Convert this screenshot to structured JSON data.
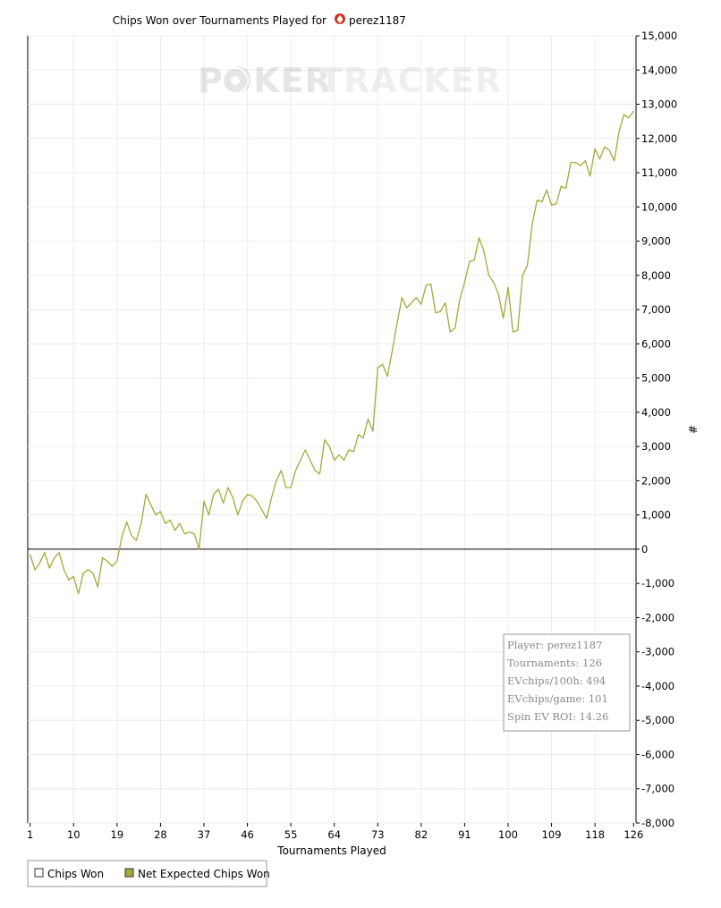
{
  "chart_data": {
    "type": "line",
    "title_prefix": "Chips Won over Tournaments Played for",
    "player_name": "perez1187",
    "title_icon": "spade-icon",
    "xlabel": "Tournaments Played",
    "ylabel": "#",
    "xlim": [
      0.5,
      126.5
    ],
    "ylim": [
      -8000,
      15000
    ],
    "x_ticks": [
      1,
      10,
      19,
      28,
      37,
      46,
      55,
      64,
      73,
      82,
      91,
      100,
      109,
      118,
      126
    ],
    "y_ticks": [
      -8000,
      -7000,
      -6000,
      -5000,
      -4000,
      -3000,
      -2000,
      -1000,
      0,
      1000,
      2000,
      3000,
      4000,
      5000,
      6000,
      7000,
      8000,
      9000,
      10000,
      11000,
      12000,
      13000,
      14000,
      15000
    ],
    "y_tick_labels": [
      "-8,000",
      "-7,000",
      "-6,000",
      "-5,000",
      "-4,000",
      "-3,000",
      "-2,000",
      "-1,000",
      "0",
      "1,000",
      "2,000",
      "3,000",
      "4,000",
      "5,000",
      "6,000",
      "7,000",
      "8,000",
      "9,000",
      "10,000",
      "11,000",
      "12,000",
      "13,000",
      "14,000",
      "15,000"
    ],
    "grid": true,
    "legend_position": "bottom-left",
    "watermark": {
      "part1": "POKER",
      "part2": "TRACKER"
    },
    "series": [
      {
        "name": "Chips Won",
        "color": "#ffffff",
        "values": []
      },
      {
        "name": "Net Expected Chips Won",
        "color": "#a5a83a",
        "x_start": 1,
        "values": [
          -150,
          -600,
          -400,
          -100,
          -550,
          -250,
          -100,
          -600,
          -900,
          -800,
          -1300,
          -700,
          -600,
          -700,
          -1100,
          -250,
          -350,
          -500,
          -350,
          350,
          800,
          400,
          250,
          750,
          1600,
          1300,
          1000,
          1100,
          750,
          850,
          550,
          750,
          450,
          500,
          450,
          0,
          1400,
          1000,
          1600,
          1750,
          1350,
          1800,
          1500,
          1000,
          1400,
          1600,
          1550,
          1400,
          1150,
          900,
          1500,
          2000,
          2300,
          1800,
          1800,
          2300,
          2600,
          2900,
          2600,
          2300,
          2200,
          3200,
          3000,
          2600,
          2750,
          2600,
          2900,
          2850,
          3350,
          3250,
          3800,
          3450,
          5300,
          5400,
          5050,
          5800,
          6600,
          7350,
          7050,
          7200,
          7350,
          7150,
          7700,
          7750,
          6900,
          6950,
          7200,
          6350,
          6450,
          7300,
          7800,
          8400,
          8450,
          9100,
          8700,
          8000,
          7800,
          7450,
          6750,
          7650,
          6350,
          6400,
          8000,
          8300,
          9500,
          10200,
          10150,
          10500,
          10050,
          10100,
          10600,
          10550,
          11300,
          11300,
          11200,
          11350,
          10900,
          11700,
          11400,
          11750,
          11650,
          11350,
          12200,
          12700,
          12600,
          12800
        ]
      }
    ],
    "stats_box": {
      "lines": [
        "Player: perez1187",
        "Tournaments: 126",
        "EVchips/100h: 494",
        "EVchips/game: 101",
        "Spin EV ROI: 14.26"
      ]
    }
  }
}
